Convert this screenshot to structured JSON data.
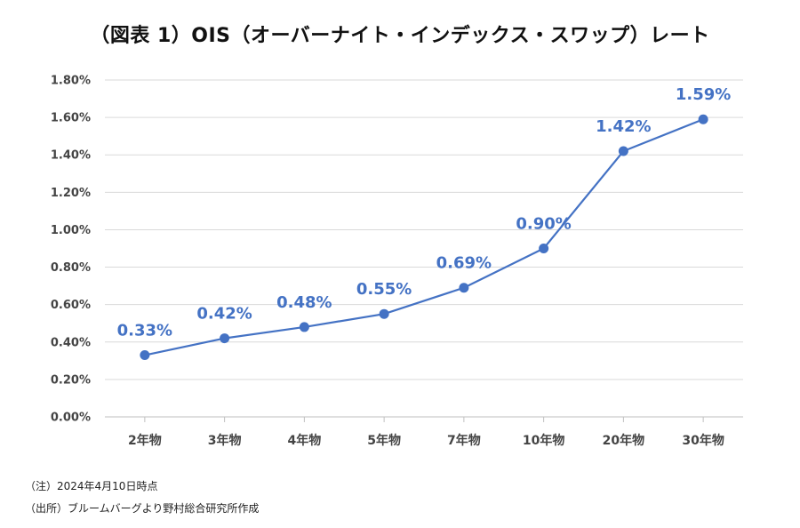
{
  "title": "（図表 1）OIS（オーバーナイト・インデックス・スワップ）レート",
  "notes": {
    "note": "（注）2024年4月10日時点",
    "source": "（出所）ブルームバーグより野村総合研究所作成"
  },
  "colors": {
    "line": "#4472C4",
    "grid": "#D9D9D9",
    "label": "#4472C4"
  },
  "chart_data": {
    "type": "line",
    "title": "（図表 1）OIS（オーバーナイト・インデックス・スワップ）レート",
    "categories": [
      "2年物",
      "3年物",
      "4年物",
      "5年物",
      "7年物",
      "10年物",
      "20年物",
      "30年物"
    ],
    "values": [
      0.33,
      0.42,
      0.48,
      0.55,
      0.69,
      0.9,
      1.42,
      1.59
    ],
    "data_labels": [
      "0.33%",
      "0.42%",
      "0.48%",
      "0.55%",
      "0.69%",
      "0.90%",
      "1.42%",
      "1.59%"
    ],
    "ylim": [
      0,
      1.8
    ],
    "yticks": [
      0,
      0.2,
      0.4,
      0.6,
      0.8,
      1.0,
      1.2,
      1.4,
      1.6,
      1.8
    ],
    "ytick_labels": [
      "0.00%",
      "0.20%",
      "0.40%",
      "0.60%",
      "0.80%",
      "1.00%",
      "1.20%",
      "1.40%",
      "1.60%",
      "1.80%"
    ],
    "grid": true,
    "legend": "none"
  }
}
